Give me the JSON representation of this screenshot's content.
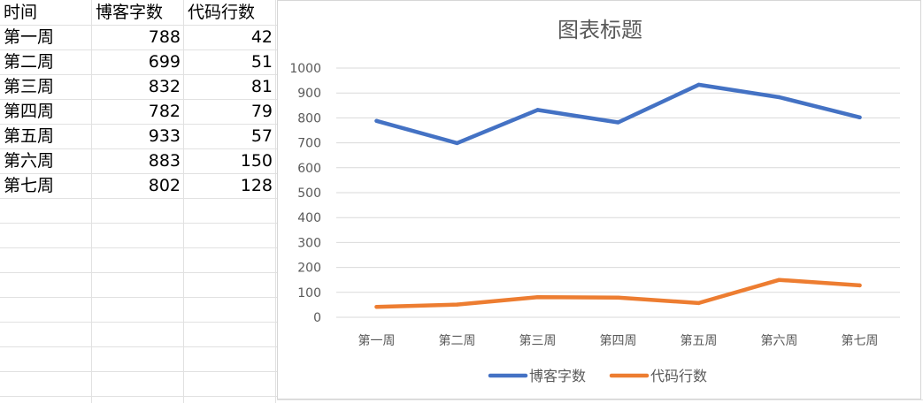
{
  "table": {
    "headers": [
      "时间",
      "博客字数",
      "代码行数"
    ],
    "rows": [
      [
        "第一周",
        "788",
        "42"
      ],
      [
        "第二周",
        "699",
        "51"
      ],
      [
        "第三周",
        "832",
        "81"
      ],
      [
        "第四周",
        "782",
        "79"
      ],
      [
        "第五周",
        "933",
        "57"
      ],
      [
        "第六周",
        "883",
        "150"
      ],
      [
        "第七周",
        "802",
        "128"
      ]
    ]
  },
  "chart_data": {
    "type": "line",
    "title": "图表标题",
    "categories": [
      "第一周",
      "第二周",
      "第三周",
      "第四周",
      "第五周",
      "第六周",
      "第七周"
    ],
    "series": [
      {
        "name": "博客字数",
        "values": [
          788,
          699,
          832,
          782,
          933,
          883,
          802
        ],
        "color": "#4472C4"
      },
      {
        "name": "代码行数",
        "values": [
          42,
          51,
          81,
          79,
          57,
          150,
          128
        ],
        "color": "#ED7D31"
      }
    ],
    "y_ticks": [
      "0",
      "100",
      "200",
      "300",
      "400",
      "500",
      "600",
      "700",
      "800",
      "900",
      "1000"
    ],
    "ylim": [
      0,
      1000
    ],
    "grid": true,
    "legend": "bottom",
    "gridline_color": "#d9d9d9"
  }
}
